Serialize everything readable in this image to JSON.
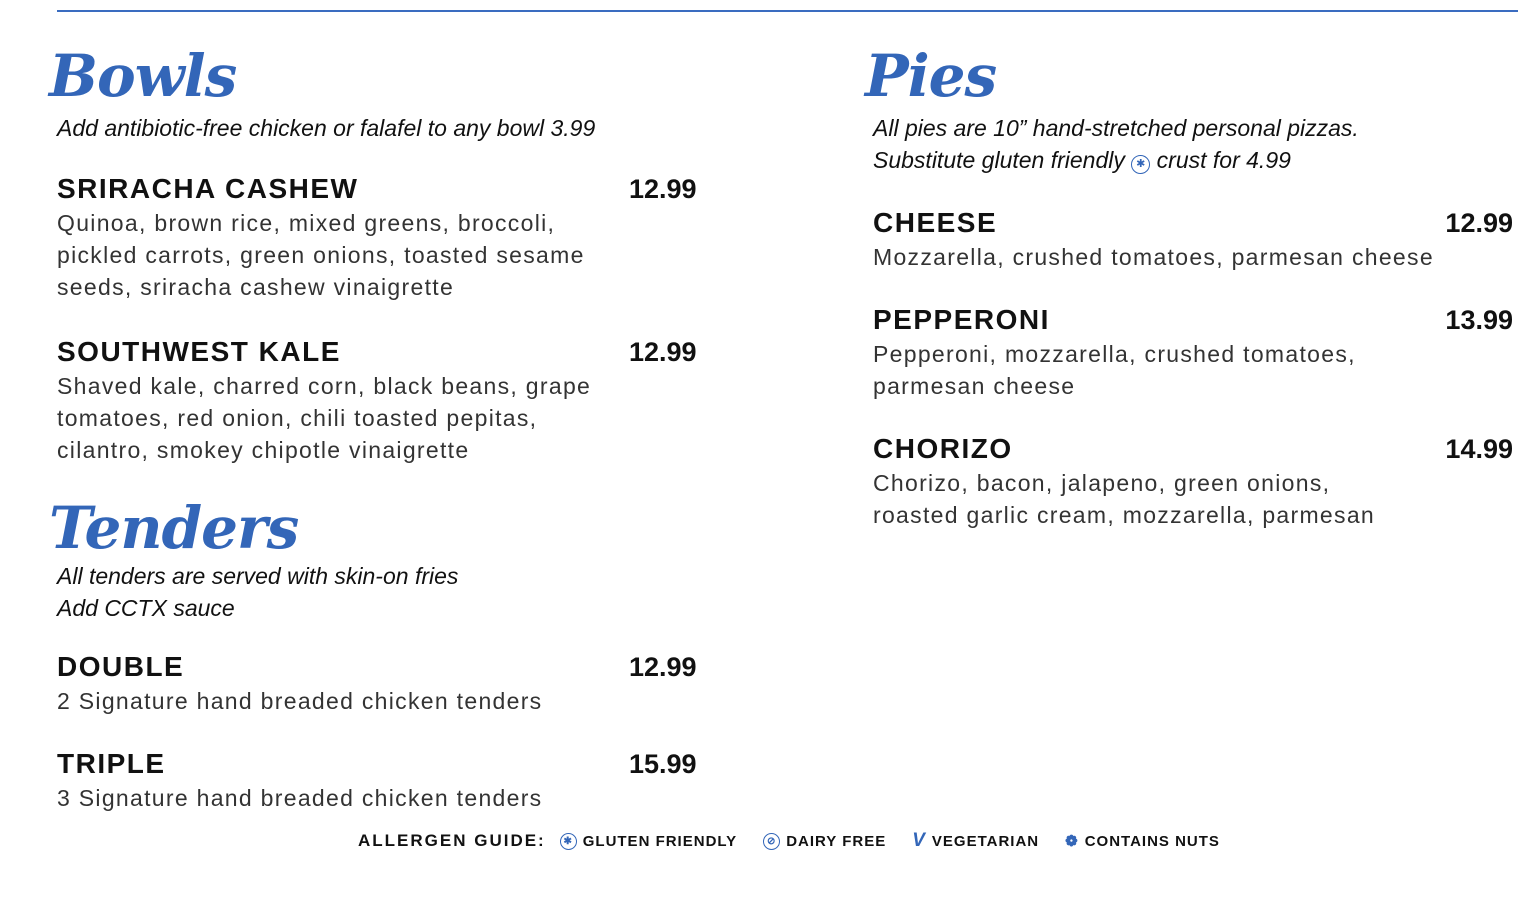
{
  "bowls": {
    "title": "Bowls",
    "subtitle": "Add antibiotic-free chicken or falafel to any bowl 3.99",
    "items": [
      {
        "name": "SRIRACHA CASHEW",
        "price": "12.99",
        "desc": [
          "Quinoa, brown rice, mixed greens, broccoli,",
          "pickled carrots, green onions, toasted sesame",
          "seeds, sriracha cashew vinaigrette"
        ]
      },
      {
        "name": "SOUTHWEST KALE",
        "price": "12.99",
        "desc": [
          "Shaved kale, charred corn, black beans, grape",
          "tomatoes, red onion, chili toasted pepitas,",
          "cilantro, smokey chipotle vinaigrette"
        ]
      }
    ]
  },
  "tenders": {
    "title": "Tenders",
    "subtitle": [
      "All tenders are served with skin-on fries",
      "Add CCTX sauce"
    ],
    "items": [
      {
        "name": "DOUBLE",
        "price": "12.99",
        "desc": [
          "2 Signature hand breaded chicken tenders"
        ]
      },
      {
        "name": "TRIPLE",
        "price": "15.99",
        "desc": [
          "3  Signature hand breaded chicken tenders"
        ]
      }
    ]
  },
  "pies": {
    "title": "Pies",
    "subtitle": [
      "All pies are 10” hand-stretched personal pizzas.",
      "Substitute gluten friendly",
      "crust for 4.99"
    ],
    "items": [
      {
        "name": "CHEESE",
        "price": "12.99",
        "desc": [
          "Mozzarella, crushed tomatoes, parmesan cheese"
        ]
      },
      {
        "name": "PEPPERONI",
        "price": "13.99",
        "desc": [
          "Pepperoni, mozzarella, crushed tomatoes,",
          "parmesan cheese"
        ]
      },
      {
        "name": "CHORIZO",
        "price": "14.99",
        "desc": [
          "Chorizo, bacon, jalapeno, green onions,",
          "roasted garlic cream, mozzarella, parmesan"
        ]
      }
    ]
  },
  "allergen_guide": {
    "label": "ALLERGEN GUIDE:",
    "items": [
      {
        "icon": "wheat-crossed-icon",
        "label": "GLUTEN FRIENDLY"
      },
      {
        "icon": "milk-crossed-icon",
        "label": "DAIRY FREE"
      },
      {
        "icon": "v-icon",
        "label": "VEGETARIAN"
      },
      {
        "icon": "nut-icon",
        "label": "CONTAINS NUTS"
      }
    ]
  },
  "colors": {
    "accent": "#3366b8"
  }
}
